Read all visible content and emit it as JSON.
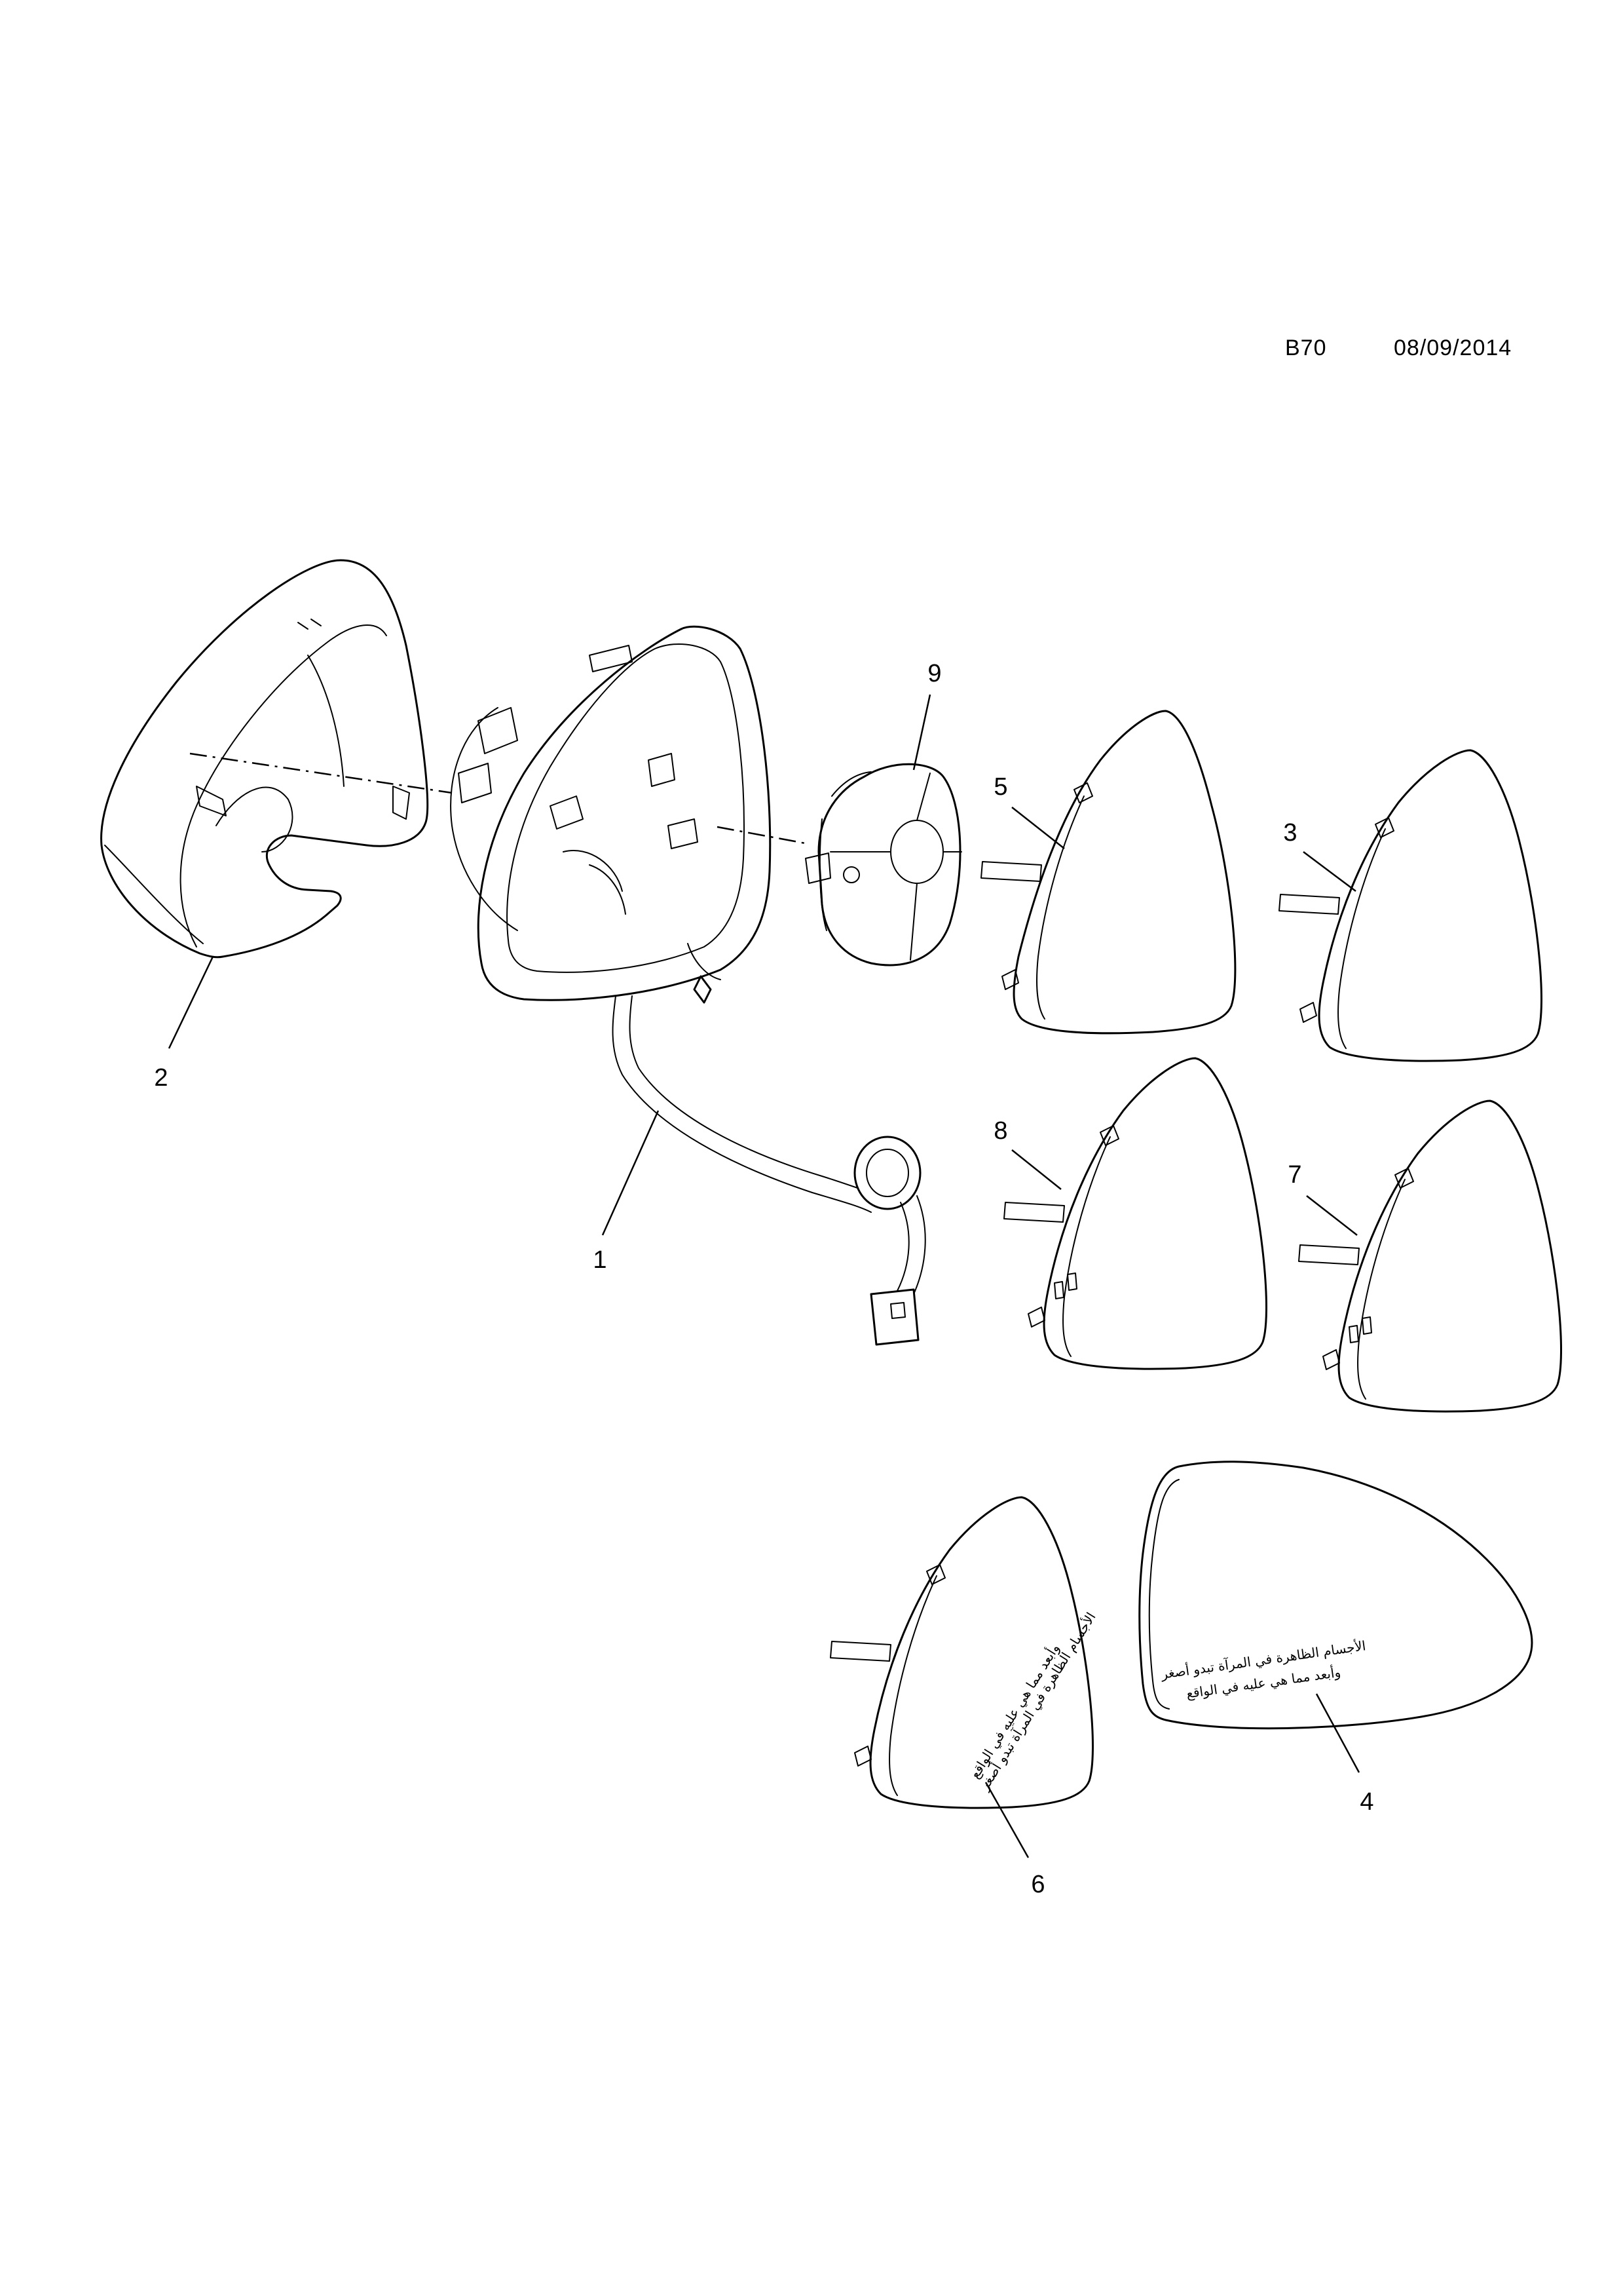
{
  "header": {
    "code": "B70",
    "date": "08/09/2014"
  },
  "callouts": [
    "1",
    "2",
    "3",
    "4",
    "5",
    "6",
    "7",
    "8",
    "9"
  ],
  "glass_warning_text": {
    "line1": "الأجسام الظاهرة في المرآة تبدو أصغر",
    "line2": "وأبعد مما هي عليه في الواقع"
  }
}
